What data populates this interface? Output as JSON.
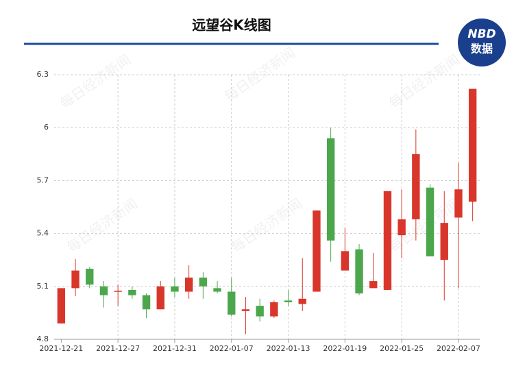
{
  "chart_data": {
    "type": "candlestick",
    "title": "远望谷K线图",
    "logo": {
      "top": "NBD",
      "bottom": "数据"
    },
    "watermark": "每日经济新闻",
    "categories": [
      "2021-12-21",
      null,
      null,
      null,
      "2021-12-27",
      null,
      null,
      null,
      "2021-12-31",
      null,
      null,
      null,
      "2022-01-07",
      null,
      null,
      null,
      "2022-01-13",
      null,
      null,
      null,
      "2022-01-19",
      null,
      null,
      null,
      "2022-01-25",
      null,
      null,
      null,
      "2022-02-07",
      null
    ],
    "series": [
      {
        "up_color": "#d9362b",
        "down_color": "#4ca74c",
        "open": [
          4.89,
          5.09,
          5.2,
          5.1,
          5.07,
          5.08,
          5.05,
          4.97,
          5.1,
          5.07,
          5.15,
          5.09,
          5.07,
          4.96,
          4.99,
          4.93,
          5.02,
          5.0,
          5.07,
          5.94,
          5.19,
          5.31,
          5.09,
          5.08,
          5.39,
          5.48,
          5.66,
          5.25,
          5.49,
          5.58
        ],
        "high": [
          5.09,
          5.255,
          5.21,
          5.13,
          5.11,
          5.1,
          5.06,
          5.13,
          5.15,
          5.22,
          5.18,
          5.13,
          5.15,
          5.04,
          5.03,
          5.02,
          5.08,
          5.26,
          5.53,
          6.0,
          5.43,
          5.34,
          5.29,
          5.64,
          5.65,
          5.99,
          5.68,
          5.64,
          5.8,
          6.22
        ],
        "low": [
          4.89,
          5.045,
          5.09,
          4.98,
          4.99,
          5.03,
          4.92,
          4.97,
          5.04,
          5.03,
          5.03,
          5.06,
          4.93,
          4.83,
          4.9,
          4.92,
          4.99,
          4.96,
          5.07,
          5.24,
          5.19,
          5.05,
          5.09,
          5.08,
          5.26,
          5.36,
          5.27,
          5.02,
          5.09,
          5.47
        ],
        "close": [
          5.09,
          5.19,
          5.11,
          5.05,
          5.075,
          5.05,
          4.97,
          5.1,
          5.07,
          5.15,
          5.1,
          5.07,
          4.94,
          4.97,
          4.93,
          5.01,
          5.01,
          5.03,
          5.53,
          5.36,
          5.3,
          5.06,
          5.13,
          5.64,
          5.48,
          5.85,
          5.27,
          5.46,
          5.65,
          6.22
        ]
      }
    ],
    "ylim": [
      4.8,
      6.3
    ],
    "yticks": [
      4.8,
      5.1,
      5.4,
      5.7,
      6,
      6.3
    ],
    "grid": true
  }
}
